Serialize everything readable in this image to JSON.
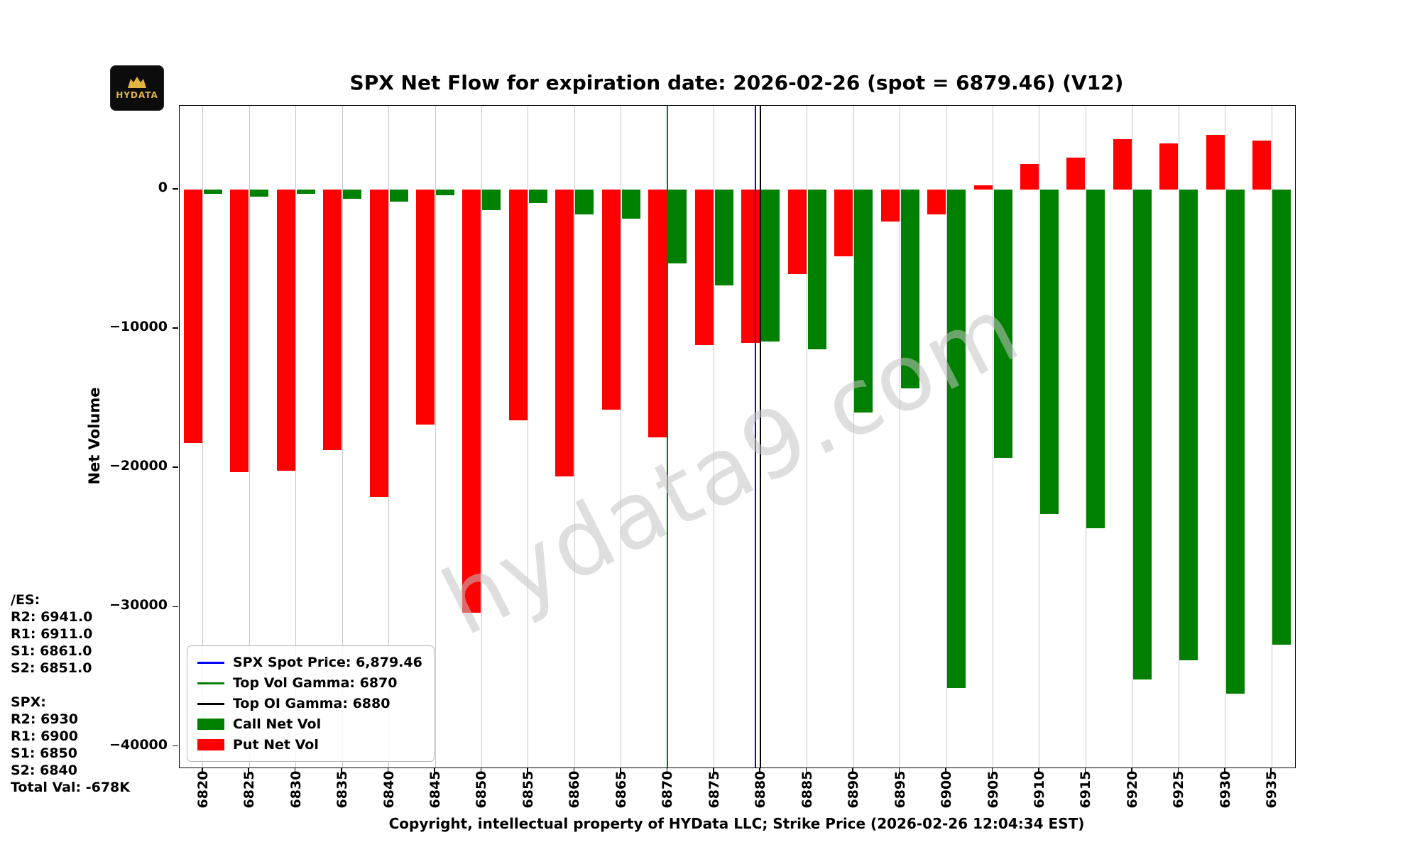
{
  "watermark": "hydata9.com",
  "logo": {
    "text": "HYDATA"
  },
  "levels": {
    "lines": [
      "/ES:",
      "R2: 6941.0",
      "R1: 6911.0",
      "S1: 6861.0",
      "S2: 6851.0",
      "",
      "SPX:",
      "R2: 6930",
      "R1: 6900",
      "S1: 6850",
      "S2: 6840",
      "Total Val: -678K"
    ]
  },
  "legend": {
    "items": [
      {
        "label": "SPX Spot Price: 6,879.46",
        "color": "#0000ff",
        "type": "line"
      },
      {
        "label": "Top Vol Gamma: 6870",
        "color": "#008000",
        "type": "line"
      },
      {
        "label": "Top OI Gamma: 6880",
        "color": "#000000",
        "type": "line"
      },
      {
        "label": "Call Net Vol",
        "color": "#008000",
        "type": "patch"
      },
      {
        "label": "Put Net Vol",
        "color": "#ff0000",
        "type": "patch"
      }
    ]
  },
  "chart_data": {
    "type": "bar",
    "title": "SPX Net Flow for expiration date: 2026-02-26 (spot = 6879.46) (V12)",
    "xlabel": "Copyright, intellectual property of HYData LLC; Strike Price (2026-02-26 12:04:34 EST)",
    "ylabel": "Net Volume",
    "ylim": [
      -41500,
      6000
    ],
    "yticks": [
      0,
      -10000,
      -20000,
      -30000,
      -40000
    ],
    "grid": "vertical",
    "legend_position": "lower left",
    "categories": [
      6820,
      6825,
      6830,
      6835,
      6840,
      6845,
      6850,
      6855,
      6860,
      6865,
      6870,
      6875,
      6880,
      6885,
      6890,
      6895,
      6900,
      6905,
      6910,
      6915,
      6920,
      6925,
      6930,
      6935
    ],
    "series": [
      {
        "name": "Put Net Vol",
        "color": "#ff0000",
        "values": [
          -18200,
          -20300,
          -20200,
          -18700,
          -22100,
          -16900,
          -30400,
          -16600,
          -20600,
          -15800,
          -17800,
          -11200,
          -11000,
          -6100,
          -4800,
          -2300,
          -1800,
          300,
          1800,
          2300,
          3600,
          3300,
          3900,
          3500
        ]
      },
      {
        "name": "Call Net Vol",
        "color": "#008000",
        "values": [
          -300,
          -500,
          -300,
          -700,
          -900,
          -400,
          -1500,
          -1000,
          -1800,
          -2100,
          -5300,
          -6900,
          -10900,
          -11500,
          -16000,
          -14300,
          -35800,
          -19300,
          -23300,
          -24300,
          -35200,
          -33800,
          -36200,
          -32700
        ]
      }
    ],
    "vlines": [
      {
        "name": "spot-price-line",
        "label": "SPX Spot Price: 6,879.46",
        "x": 6879.46,
        "color": "#0000ff"
      },
      {
        "name": "top-vol-gamma-line",
        "label": "Top Vol Gamma: 6870",
        "x": 6870,
        "color": "#008000"
      },
      {
        "name": "top-oi-gamma-line",
        "label": "Top OI Gamma: 6880",
        "x": 6880,
        "color": "#000000"
      }
    ]
  }
}
